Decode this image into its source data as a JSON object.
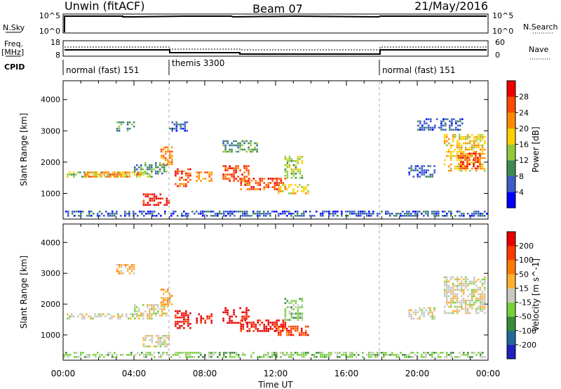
{
  "header": {
    "radar": "Unwin (fitACF)",
    "beam": "Beam 07",
    "date": "21/May/2016"
  },
  "nsky_panel": {
    "label": "N.Sky",
    "left_ticks": [
      "10^5",
      "10^0"
    ],
    "right_ticks": [
      "10^5",
      "10^0"
    ],
    "right_label": "N.Search"
  },
  "freq_panel": {
    "label_line1": "Freq.",
    "label_line2": "[MHz]",
    "left_ticks": [
      "18",
      "8"
    ],
    "right_ticks": [
      "60",
      "0"
    ],
    "right_label": "Nave"
  },
  "cpid": {
    "label": "CPID",
    "segments": [
      {
        "name": "normal (fast) 151",
        "start_hour": 0,
        "end_hour": 6
      },
      {
        "name": "themis 3300",
        "start_hour": 6,
        "end_hour": 18
      },
      {
        "name": "normal (fast) 151",
        "start_hour": 18,
        "end_hour": 24
      }
    ]
  },
  "time_axis": {
    "tick_labels": [
      "00:00",
      "04:00",
      "08:00",
      "12:00",
      "16:00",
      "20:00",
      "00:00"
    ],
    "label": "Time UT"
  },
  "chart_data": [
    {
      "type": "heatmap",
      "panel": "power",
      "ylabel": "Slant Range [km]",
      "xlim": [
        0,
        24
      ],
      "ylim": [
        180,
        4600
      ],
      "y_tick_labels": [
        "1000",
        "2000",
        "3000",
        "4000"
      ],
      "colorbar": {
        "label": "Power [dB]",
        "tick_labels": [
          "4",
          "8",
          "12",
          "16",
          "20",
          "24",
          "28"
        ],
        "colors": [
          "#0000ff",
          "#3c5dc8",
          "#3f8a54",
          "#92c83c",
          "#ffd000",
          "#ff8a00",
          "#ff4a00",
          "#ee0000"
        ]
      },
      "regions": [
        {
          "t": [
            0.2,
            5.0
          ],
          "range": [
            1500,
            1700
          ],
          "level": 3
        },
        {
          "t": [
            1.2,
            4.3
          ],
          "range": [
            1550,
            1700
          ],
          "level": 5
        },
        {
          "t": [
            4.0,
            5.8
          ],
          "range": [
            1600,
            2000
          ],
          "level": 2
        },
        {
          "t": [
            4.5,
            6.0
          ],
          "range": [
            600,
            1000
          ],
          "level": 7
        },
        {
          "t": [
            5.5,
            6.2
          ],
          "range": [
            1900,
            2500
          ],
          "level": 5
        },
        {
          "t": [
            6.3,
            7.2
          ],
          "range": [
            1200,
            1800
          ],
          "level": 6
        },
        {
          "t": [
            7.5,
            8.4
          ],
          "range": [
            1400,
            1700
          ],
          "level": 5
        },
        {
          "t": [
            9.0,
            10.5
          ],
          "range": [
            1400,
            1900
          ],
          "level": 6
        },
        {
          "t": [
            10.0,
            12.5
          ],
          "range": [
            1100,
            1500
          ],
          "level": 6
        },
        {
          "t": [
            12.0,
            13.8
          ],
          "range": [
            1000,
            1300
          ],
          "level": 4
        },
        {
          "t": [
            12.5,
            13.5
          ],
          "range": [
            1500,
            2200
          ],
          "level": 3
        },
        {
          "t": [
            3.0,
            4.0
          ],
          "range": [
            3000,
            3300
          ],
          "level": 2
        },
        {
          "t": [
            6.0,
            7.0
          ],
          "range": [
            3000,
            3300
          ],
          "level": 1
        },
        {
          "t": [
            9.0,
            11.0
          ],
          "range": [
            2300,
            2700
          ],
          "level": 2
        },
        {
          "t": [
            21.5,
            23.8
          ],
          "range": [
            1700,
            2900
          ],
          "level": 4
        },
        {
          "t": [
            22.3,
            23.5
          ],
          "range": [
            1800,
            2300
          ],
          "level": 6
        },
        {
          "t": [
            19.5,
            21.0
          ],
          "range": [
            1500,
            1900
          ],
          "level": 1
        },
        {
          "t": [
            20.0,
            22.5
          ],
          "range": [
            3000,
            3400
          ],
          "level": 1
        },
        {
          "t": [
            0,
            24
          ],
          "range": [
            250,
            450
          ],
          "level": 1
        }
      ]
    },
    {
      "type": "heatmap",
      "panel": "velocity",
      "ylabel": "Slant Range [km]",
      "xlim": [
        0,
        24
      ],
      "ylim": [
        180,
        4600
      ],
      "y_tick_labels": [
        "1000",
        "2000",
        "3000",
        "4000"
      ],
      "colorbar": {
        "label": "Velocity [m s^-1]",
        "tick_labels": [
          "200",
          "100",
          "50",
          "15",
          "-15",
          "-50",
          "-100",
          "-200"
        ],
        "colors": [
          "#2020c0",
          "#206a9a",
          "#3a8a3a",
          "#78d03a",
          "#c8c8be",
          "#ffb030",
          "#ff7a00",
          "#ff3a00",
          "#e80000"
        ]
      },
      "regions": [
        {
          "t": [
            0.2,
            5.0
          ],
          "range": [
            1500,
            1700
          ],
          "level": 4
        },
        {
          "t": [
            4.0,
            5.8
          ],
          "range": [
            1600,
            2000
          ],
          "level": 4
        },
        {
          "t": [
            4.5,
            6.0
          ],
          "range": [
            600,
            1000
          ],
          "level": 4
        },
        {
          "t": [
            5.5,
            6.2
          ],
          "range": [
            1900,
            2500
          ],
          "level": 5
        },
        {
          "t": [
            6.3,
            7.2
          ],
          "range": [
            1200,
            1800
          ],
          "level": 8
        },
        {
          "t": [
            7.5,
            8.4
          ],
          "range": [
            1400,
            1700
          ],
          "level": 8
        },
        {
          "t": [
            9.0,
            10.5
          ],
          "range": [
            1400,
            1900
          ],
          "level": 8
        },
        {
          "t": [
            10.0,
            12.5
          ],
          "range": [
            1100,
            1500
          ],
          "level": 8
        },
        {
          "t": [
            12.0,
            13.8
          ],
          "range": [
            1000,
            1300
          ],
          "level": 7
        },
        {
          "t": [
            12.5,
            13.5
          ],
          "range": [
            1500,
            2200
          ],
          "level": 3
        },
        {
          "t": [
            3.0,
            4.0
          ],
          "range": [
            3000,
            3300
          ],
          "level": 5
        },
        {
          "t": [
            21.5,
            23.8
          ],
          "range": [
            1700,
            2900
          ],
          "level": 4
        },
        {
          "t": [
            19.5,
            21.0
          ],
          "range": [
            1500,
            1900
          ],
          "level": 4
        },
        {
          "t": [
            0,
            24
          ],
          "range": [
            250,
            450
          ],
          "level": 3
        }
      ]
    }
  ]
}
